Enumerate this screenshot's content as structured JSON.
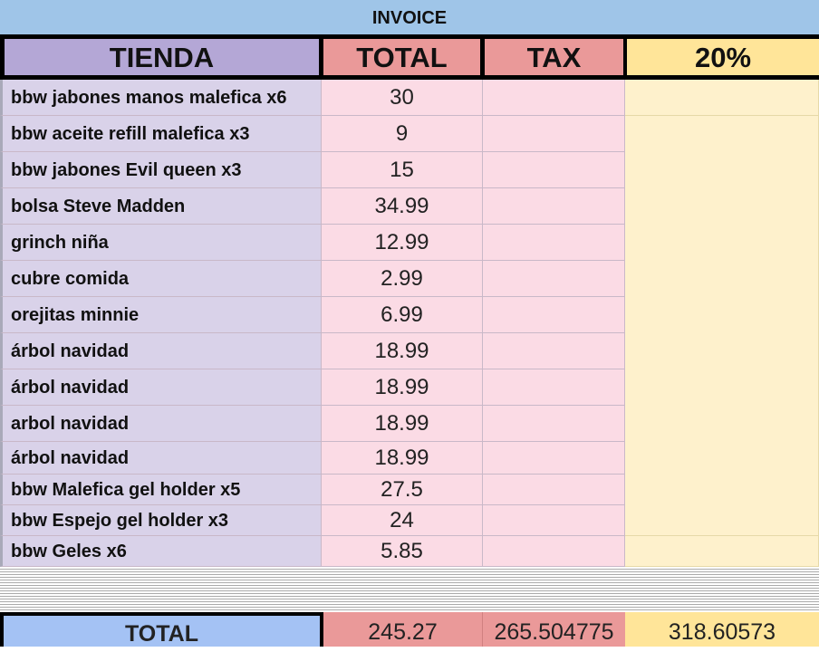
{
  "title": "INVOICE",
  "headers": {
    "store": "TIENDA",
    "total": "TOTAL",
    "tax": "TAX",
    "pct": "20%"
  },
  "rows": [
    {
      "name": "bbw jabones manos malefica x6",
      "total": "30"
    },
    {
      "name": "bbw aceite refill malefica x3",
      "total": "9"
    },
    {
      "name": "bbw jabones Evil queen x3",
      "total": "15"
    },
    {
      "name": "bolsa Steve Madden",
      "total": "34.99"
    },
    {
      "name": "grinch niña",
      "total": "12.99"
    },
    {
      "name": "cubre comida",
      "total": "2.99"
    },
    {
      "name": "orejitas minnie",
      "total": "6.99"
    },
    {
      "name": "árbol navidad",
      "total": "18.99"
    },
    {
      "name": "árbol navidad",
      "total": "18.99"
    },
    {
      "name": "arbol navidad",
      "total": "18.99"
    },
    {
      "name": "árbol navidad",
      "total": "18.99"
    },
    {
      "name": "bbw Malefica gel holder x5",
      "total": "27.5"
    },
    {
      "name": "bbw Espejo gel holder x3",
      "total": "24"
    },
    {
      "name": "bbw Geles x6",
      "total": "5.85"
    }
  ],
  "footer": {
    "label": "TOTAL",
    "total": "245.27",
    "tax": "265.504775",
    "pct": "318.60573"
  },
  "colors": {
    "title": "#9fc5e8",
    "store": "#b4a7d6",
    "total": "#ea9999",
    "pct": "#ffe599",
    "footer_label": "#a4c2f4"
  }
}
